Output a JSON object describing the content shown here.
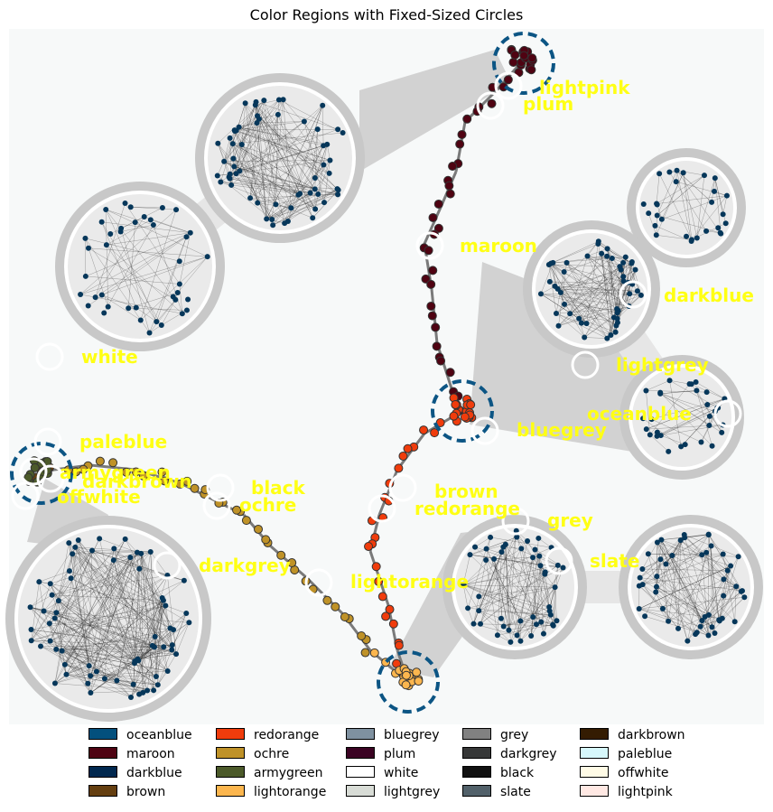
{
  "title": "Color Regions with Fixed-Sized Circles",
  "colors": {
    "canvas": "#f7f9f9",
    "cluster_node": "#06375a",
    "dashed_circle": "#0c5584",
    "label": "#ffff14",
    "halo": "#bdbdbd"
  },
  "labels": [
    {
      "name": "lightpink"
    },
    {
      "name": "plum"
    },
    {
      "name": "maroon"
    },
    {
      "name": "darkblue"
    },
    {
      "name": "white"
    },
    {
      "name": "lightgrey"
    },
    {
      "name": "oceanblue"
    },
    {
      "name": "bluegrey"
    },
    {
      "name": "paleblue"
    },
    {
      "name": "armygreen"
    },
    {
      "name": "darkbrown"
    },
    {
      "name": "offwhite"
    },
    {
      "name": "black"
    },
    {
      "name": "ochre"
    },
    {
      "name": "brown"
    },
    {
      "name": "redorange"
    },
    {
      "name": "grey"
    },
    {
      "name": "slate"
    },
    {
      "name": "darkgrey"
    },
    {
      "name": "lightorange"
    }
  ],
  "legend": [
    {
      "label": "oceanblue",
      "color": "#03507d"
    },
    {
      "label": "maroon",
      "color": "#4f0312"
    },
    {
      "label": "darkblue",
      "color": "#01284f"
    },
    {
      "label": "brown",
      "color": "#653f10"
    },
    {
      "label": "redorange",
      "color": "#f03c0c"
    },
    {
      "label": "ochre",
      "color": "#bf9228"
    },
    {
      "label": "armygreen",
      "color": "#4c5a2a"
    },
    {
      "label": "lightorange",
      "color": "#fcb64e"
    },
    {
      "label": "bluegrey",
      "color": "#7f91a0"
    },
    {
      "label": "plum",
      "color": "#3b0323"
    },
    {
      "label": "white",
      "color": "#ffffff"
    },
    {
      "label": "lightgrey",
      "color": "#d8dcd6"
    },
    {
      "label": "grey",
      "color": "#818181"
    },
    {
      "label": "darkgrey",
      "color": "#363737"
    },
    {
      "label": "black",
      "color": "#111111"
    },
    {
      "label": "slate",
      "color": "#52616a"
    },
    {
      "label": "darkbrown",
      "color": "#341c02"
    },
    {
      "label": "paleblue",
      "color": "#d7f8fc"
    },
    {
      "label": "offwhite",
      "color": "#fffbe6"
    },
    {
      "label": "lightpink",
      "color": "#ffe8e3"
    }
  ]
}
